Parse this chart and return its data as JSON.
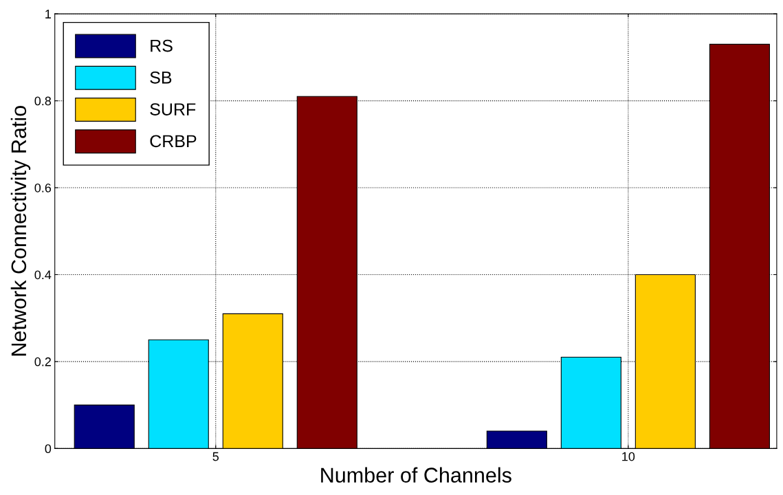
{
  "chart_data": {
    "type": "bar",
    "xlabel": "Number of Channels",
    "ylabel": "Network Connectivity Ratio",
    "categories": [
      "5",
      "10"
    ],
    "series": [
      {
        "name": "RS",
        "color": "#000080",
        "values": [
          0.1,
          0.04
        ]
      },
      {
        "name": "SB",
        "color": "#00e0ff",
        "values": [
          0.25,
          0.21
        ]
      },
      {
        "name": "SURF",
        "color": "#ffcc00",
        "values": [
          0.31,
          0.4
        ]
      },
      {
        "name": "CRBP",
        "color": "#800000",
        "values": [
          0.81,
          0.93
        ]
      }
    ],
    "ylim": [
      0,
      1
    ],
    "yticks": [
      0,
      0.2,
      0.4,
      0.6,
      0.8,
      1
    ],
    "grid": true,
    "legend": "top left"
  }
}
